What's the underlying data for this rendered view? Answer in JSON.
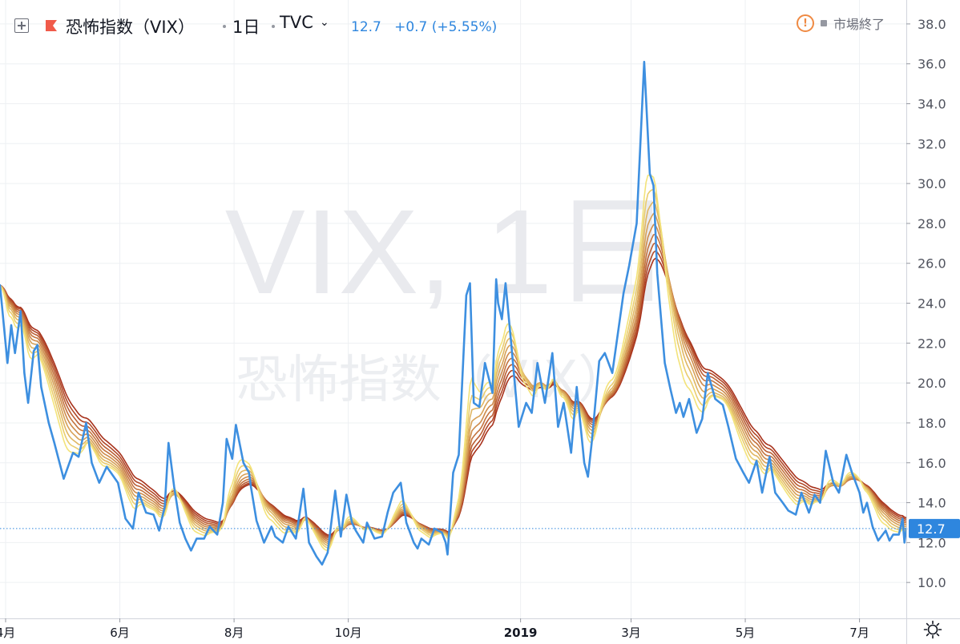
{
  "header": {
    "symbol": "恐怖指数（VIX）",
    "interval": "1日",
    "exchange": "TVC",
    "last_price": "12.7",
    "change": "+0.7 (+5.55%)",
    "market_status": "市場終了"
  },
  "icons": {
    "expand": "plus-square-icon",
    "flag": "flag-icon",
    "exchange_dropdown": "chevron-down-icon",
    "warning": "warning-icon",
    "settings": "gear-icon"
  },
  "colors": {
    "vix_line": "#3d8fe0",
    "ribbon_fast": "#f3e37a",
    "ribbon_slow": "#a8321c",
    "last_price_badge": "#2e86de",
    "grid": "#eef0f3"
  },
  "chart_data": {
    "type": "line",
    "title": "",
    "watermark_line1": "VIX, 1日",
    "watermark_line2": "恐怖指数（VIX）",
    "x_axis": {
      "labels": [
        "4月",
        "6月",
        "8月",
        "10月",
        "2019",
        "3月",
        "5月",
        "7月"
      ],
      "label_positions": [
        "2018-04-01",
        "2018-06-01",
        "2018-08-01",
        "2018-10-01",
        "2019-01-01",
        "2019-03-01",
        "2019-05-01",
        "2019-07-01"
      ],
      "range": [
        "2018-03-29",
        "2019-07-26"
      ]
    },
    "y_axis": {
      "range": [
        8.2,
        39.2
      ],
      "ticks": [
        "10.0",
        "12.0",
        "14.0",
        "16.0",
        "18.0",
        "20.0",
        "22.0",
        "24.0",
        "26.0",
        "28.0",
        "30.0",
        "32.0",
        "34.0",
        "36.0",
        "38.0"
      ]
    },
    "last_price_label": "12.7",
    "last_price_value": 12.7,
    "grid": true,
    "series": [
      {
        "kind": "price",
        "points": [
          [
            "2018-03-29",
            24.9
          ],
          [
            "2018-04-02",
            21.0
          ],
          [
            "2018-04-04",
            22.9
          ],
          [
            "2018-04-06",
            21.5
          ],
          [
            "2018-04-09",
            23.6
          ],
          [
            "2018-04-11",
            20.5
          ],
          [
            "2018-04-13",
            19.0
          ],
          [
            "2018-04-16",
            21.6
          ],
          [
            "2018-04-18",
            21.9
          ],
          [
            "2018-04-20",
            19.8
          ],
          [
            "2018-04-24",
            18.0
          ],
          [
            "2018-04-27",
            17.0
          ],
          [
            "2018-05-02",
            15.2
          ],
          [
            "2018-05-07",
            16.5
          ],
          [
            "2018-05-10",
            16.3
          ],
          [
            "2018-05-14",
            18.0
          ],
          [
            "2018-05-17",
            16.0
          ],
          [
            "2018-05-21",
            15.0
          ],
          [
            "2018-05-25",
            15.8
          ],
          [
            "2018-05-31",
            15.0
          ],
          [
            "2018-06-04",
            13.2
          ],
          [
            "2018-06-08",
            12.7
          ],
          [
            "2018-06-11",
            14.5
          ],
          [
            "2018-06-15",
            13.5
          ],
          [
            "2018-06-19",
            13.4
          ],
          [
            "2018-06-22",
            12.6
          ],
          [
            "2018-06-25",
            13.8
          ],
          [
            "2018-06-27",
            17.0
          ],
          [
            "2018-06-30",
            14.8
          ],
          [
            "2018-07-03",
            13.0
          ],
          [
            "2018-07-06",
            12.2
          ],
          [
            "2018-07-09",
            11.6
          ],
          [
            "2018-07-12",
            12.2
          ],
          [
            "2018-07-16",
            12.2
          ],
          [
            "2018-07-19",
            12.8
          ],
          [
            "2018-07-23",
            12.4
          ],
          [
            "2018-07-26",
            14.0
          ],
          [
            "2018-07-28",
            17.2
          ],
          [
            "2018-07-31",
            16.2
          ],
          [
            "2018-08-02",
            17.9
          ],
          [
            "2018-08-06",
            16.0
          ],
          [
            "2018-08-09",
            15.5
          ],
          [
            "2018-08-10",
            14.8
          ],
          [
            "2018-08-13",
            13.1
          ],
          [
            "2018-08-17",
            12.0
          ],
          [
            "2018-08-21",
            12.8
          ],
          [
            "2018-08-23",
            12.3
          ],
          [
            "2018-08-27",
            12.0
          ],
          [
            "2018-08-30",
            12.8
          ],
          [
            "2018-09-03",
            12.2
          ],
          [
            "2018-09-07",
            14.7
          ],
          [
            "2018-09-10",
            12.0
          ],
          [
            "2018-09-14",
            11.3
          ],
          [
            "2018-09-17",
            10.9
          ],
          [
            "2018-09-20",
            11.5
          ],
          [
            "2018-09-24",
            14.6
          ],
          [
            "2018-09-27",
            12.3
          ],
          [
            "2018-09-30",
            14.4
          ],
          [
            "2018-10-03",
            13.0
          ],
          [
            "2018-10-05",
            12.6
          ],
          [
            "2018-10-09",
            12.0
          ],
          [
            "2018-10-11",
            13.0
          ],
          [
            "2018-10-15",
            12.2
          ],
          [
            "2018-10-19",
            12.3
          ],
          [
            "2018-10-22",
            13.5
          ],
          [
            "2018-10-25",
            14.5
          ],
          [
            "2018-10-29",
            15.0
          ],
          [
            "2018-11-01",
            13.0
          ],
          [
            "2018-11-05",
            12.0
          ],
          [
            "2018-11-07",
            11.7
          ],
          [
            "2018-11-09",
            12.2
          ],
          [
            "2018-11-13",
            11.9
          ],
          [
            "2018-11-16",
            12.7
          ],
          [
            "2018-11-20",
            12.5
          ],
          [
            "2018-11-22",
            12.0
          ],
          [
            "2018-11-23",
            11.4
          ],
          [
            "2018-11-26",
            15.5
          ],
          [
            "2018-11-29",
            16.4
          ],
          [
            "2018-12-03",
            24.4
          ],
          [
            "2018-12-05",
            25.0
          ],
          [
            "2018-12-07",
            19.0
          ],
          [
            "2018-12-10",
            18.8
          ],
          [
            "2018-12-13",
            21.0
          ],
          [
            "2018-12-17",
            19.5
          ],
          [
            "2018-12-19",
            25.2
          ],
          [
            "2018-12-20",
            24.0
          ],
          [
            "2018-12-22",
            23.2
          ],
          [
            "2018-12-24",
            25.0
          ],
          [
            "2018-12-27",
            22.0
          ],
          [
            "2018-12-31",
            17.8
          ],
          [
            "2019-01-04",
            19.0
          ],
          [
            "2019-01-07",
            18.5
          ],
          [
            "2019-01-10",
            21.0
          ],
          [
            "2019-01-14",
            19.0
          ],
          [
            "2019-01-18",
            21.5
          ],
          [
            "2019-01-21",
            17.8
          ],
          [
            "2019-01-24",
            19.0
          ],
          [
            "2019-01-28",
            16.5
          ],
          [
            "2019-01-31",
            19.8
          ],
          [
            "2019-02-04",
            16.0
          ],
          [
            "2019-02-06",
            15.3
          ],
          [
            "2019-02-08",
            17.0
          ],
          [
            "2019-02-12",
            21.1
          ],
          [
            "2019-02-15",
            21.5
          ],
          [
            "2019-02-19",
            20.5
          ],
          [
            "2019-02-22",
            22.5
          ],
          [
            "2019-02-25",
            24.5
          ],
          [
            "2019-02-28",
            25.9
          ],
          [
            "2019-03-04",
            28.0
          ],
          [
            "2019-03-08",
            36.1
          ],
          [
            "2019-03-11",
            30.5
          ],
          [
            "2019-03-13",
            29.9
          ],
          [
            "2019-03-15",
            25.5
          ],
          [
            "2019-03-19",
            21.0
          ],
          [
            "2019-03-22",
            19.7
          ],
          [
            "2019-03-25",
            18.5
          ],
          [
            "2019-03-27",
            19.0
          ],
          [
            "2019-03-29",
            18.3
          ],
          [
            "2019-04-01",
            19.2
          ],
          [
            "2019-04-05",
            17.5
          ],
          [
            "2019-04-08",
            18.2
          ],
          [
            "2019-04-11",
            20.5
          ],
          [
            "2019-04-15",
            19.2
          ],
          [
            "2019-04-19",
            18.9
          ],
          [
            "2019-04-22",
            17.8
          ],
          [
            "2019-04-26",
            16.2
          ],
          [
            "2019-04-30",
            15.5
          ],
          [
            "2019-05-03",
            15.0
          ],
          [
            "2019-05-07",
            16.1
          ],
          [
            "2019-05-10",
            14.5
          ],
          [
            "2019-05-14",
            16.3
          ],
          [
            "2019-05-17",
            14.5
          ],
          [
            "2019-05-21",
            14.0
          ],
          [
            "2019-05-24",
            13.6
          ],
          [
            "2019-05-28",
            13.4
          ],
          [
            "2019-05-31",
            14.5
          ],
          [
            "2019-06-04",
            13.5
          ],
          [
            "2019-06-07",
            14.4
          ],
          [
            "2019-06-10",
            14.0
          ],
          [
            "2019-06-13",
            16.6
          ],
          [
            "2019-06-17",
            15.0
          ],
          [
            "2019-06-20",
            14.5
          ],
          [
            "2019-06-24",
            16.4
          ],
          [
            "2019-06-27",
            15.5
          ],
          [
            "2019-07-01",
            14.5
          ],
          [
            "2019-07-03",
            13.5
          ],
          [
            "2019-07-05",
            14.0
          ],
          [
            "2019-07-08",
            12.8
          ],
          [
            "2019-07-11",
            12.1
          ],
          [
            "2019-07-15",
            12.6
          ],
          [
            "2019-07-17",
            12.1
          ],
          [
            "2019-07-19",
            12.4
          ],
          [
            "2019-07-22",
            12.4
          ],
          [
            "2019-07-24",
            13.2
          ],
          [
            "2019-07-25",
            12.0
          ],
          [
            "2019-07-26",
            12.7
          ]
        ]
      }
    ]
  }
}
